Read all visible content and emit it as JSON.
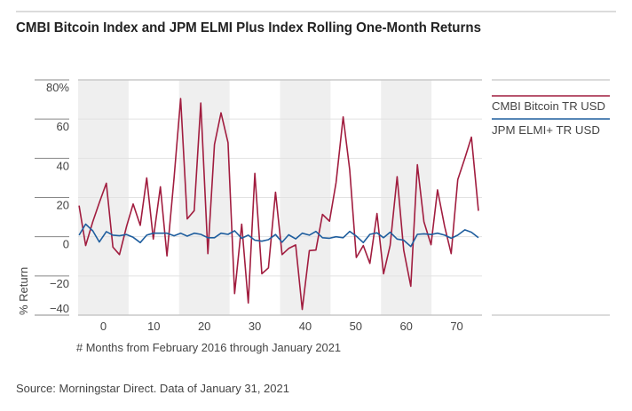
{
  "chart_data": {
    "type": "line",
    "title": "CMBI Bitcoin Index and JPM ELMI Plus Index Rolling One-Month Returns",
    "xlabel": "# Months from February 2016 through January 2021",
    "ylabel": "% Return",
    "xlim": [
      -5,
      75
    ],
    "ylim": [
      -40,
      80
    ],
    "x_ticks": [
      0,
      10,
      20,
      30,
      40,
      50,
      60,
      70
    ],
    "x_tick_labels": [
      "0",
      "10",
      "20",
      "30",
      "40",
      "50",
      "60",
      "70"
    ],
    "y_ticks": [
      80,
      60,
      40,
      20,
      0,
      -20,
      -40
    ],
    "y_tick_labels": [
      "80%",
      "60",
      "40",
      "20",
      "0",
      "−20",
      "−40"
    ],
    "shaded_bands": [
      [
        -5,
        5
      ],
      [
        15,
        25
      ],
      [
        35,
        45
      ],
      [
        55,
        65
      ]
    ],
    "grid": true,
    "legend_placement": "right",
    "x": [
      -4.8,
      -3.5,
      -2.1,
      -0.8,
      0.6,
      1.9,
      3.2,
      4.6,
      5.9,
      7.3,
      8.6,
      9.9,
      11.3,
      12.6,
      14.0,
      15.3,
      16.6,
      18.0,
      19.3,
      20.7,
      22.0,
      23.3,
      24.7,
      26.0,
      27.4,
      28.7,
      30.0,
      31.4,
      32.7,
      34.1,
      35.4,
      36.7,
      38.1,
      39.4,
      40.8,
      42.1,
      43.4,
      44.8,
      46.1,
      47.5,
      48.8,
      50.1,
      51.5,
      52.8,
      54.2,
      55.5,
      56.8,
      58.2,
      59.5,
      60.9,
      62.2,
      63.5,
      64.9,
      66.2,
      67.6,
      68.9,
      70.2,
      71.6,
      72.9,
      74.3
    ],
    "series": [
      {
        "name": "CMBI Bitcoin TR USD",
        "color": "#a11d3f",
        "values": [
          15.9,
          -4.5,
          7.6,
          17.4,
          27.3,
          -5.3,
          -9.1,
          5.3,
          16.7,
          5.8,
          30.0,
          -1.2,
          25.5,
          -9.8,
          30.0,
          70.5,
          9.1,
          13.3,
          68.2,
          -8.6,
          47.0,
          63.2,
          48.0,
          -29.0,
          6.4,
          -33.8,
          32.3,
          -18.9,
          -15.9,
          22.7,
          -9.1,
          -6.0,
          -4.2,
          -37.1,
          -7.1,
          -6.8,
          11.4,
          7.9,
          27.6,
          61.1,
          34.1,
          -10.6,
          -4.5,
          -13.6,
          11.8,
          -18.9,
          -4.5,
          30.6,
          -6.8,
          -25.3,
          36.7,
          7.6,
          -4.1,
          23.9,
          5.3,
          -8.6,
          29.1,
          40.0,
          50.8,
          13.2
        ]
      },
      {
        "name": "JPM ELMI+ TR USD",
        "color": "#1f5e9e",
        "values": [
          0.8,
          6.4,
          3.0,
          -2.7,
          2.6,
          0.8,
          0.5,
          1.1,
          -0.3,
          -3.0,
          0.8,
          1.8,
          1.8,
          1.8,
          0.5,
          1.8,
          0.3,
          1.8,
          1.2,
          -0.5,
          -0.5,
          1.8,
          1.2,
          3.0,
          -0.8,
          0.8,
          -1.8,
          -2.3,
          -1.5,
          1.1,
          -2.8,
          1.0,
          -1.1,
          1.8,
          0.8,
          2.7,
          -0.5,
          -0.8,
          0.0,
          -0.5,
          2.7,
          0.3,
          -3.0,
          1.2,
          2.0,
          -0.5,
          2.3,
          -1.2,
          -1.8,
          -5.0,
          1.2,
          1.5,
          1.1,
          1.8,
          0.8,
          -0.8,
          0.8,
          3.5,
          2.3,
          -0.5
        ]
      }
    ]
  },
  "footer": {
    "source": "Source: Morningstar Direct. Data of January 31, 2021"
  }
}
